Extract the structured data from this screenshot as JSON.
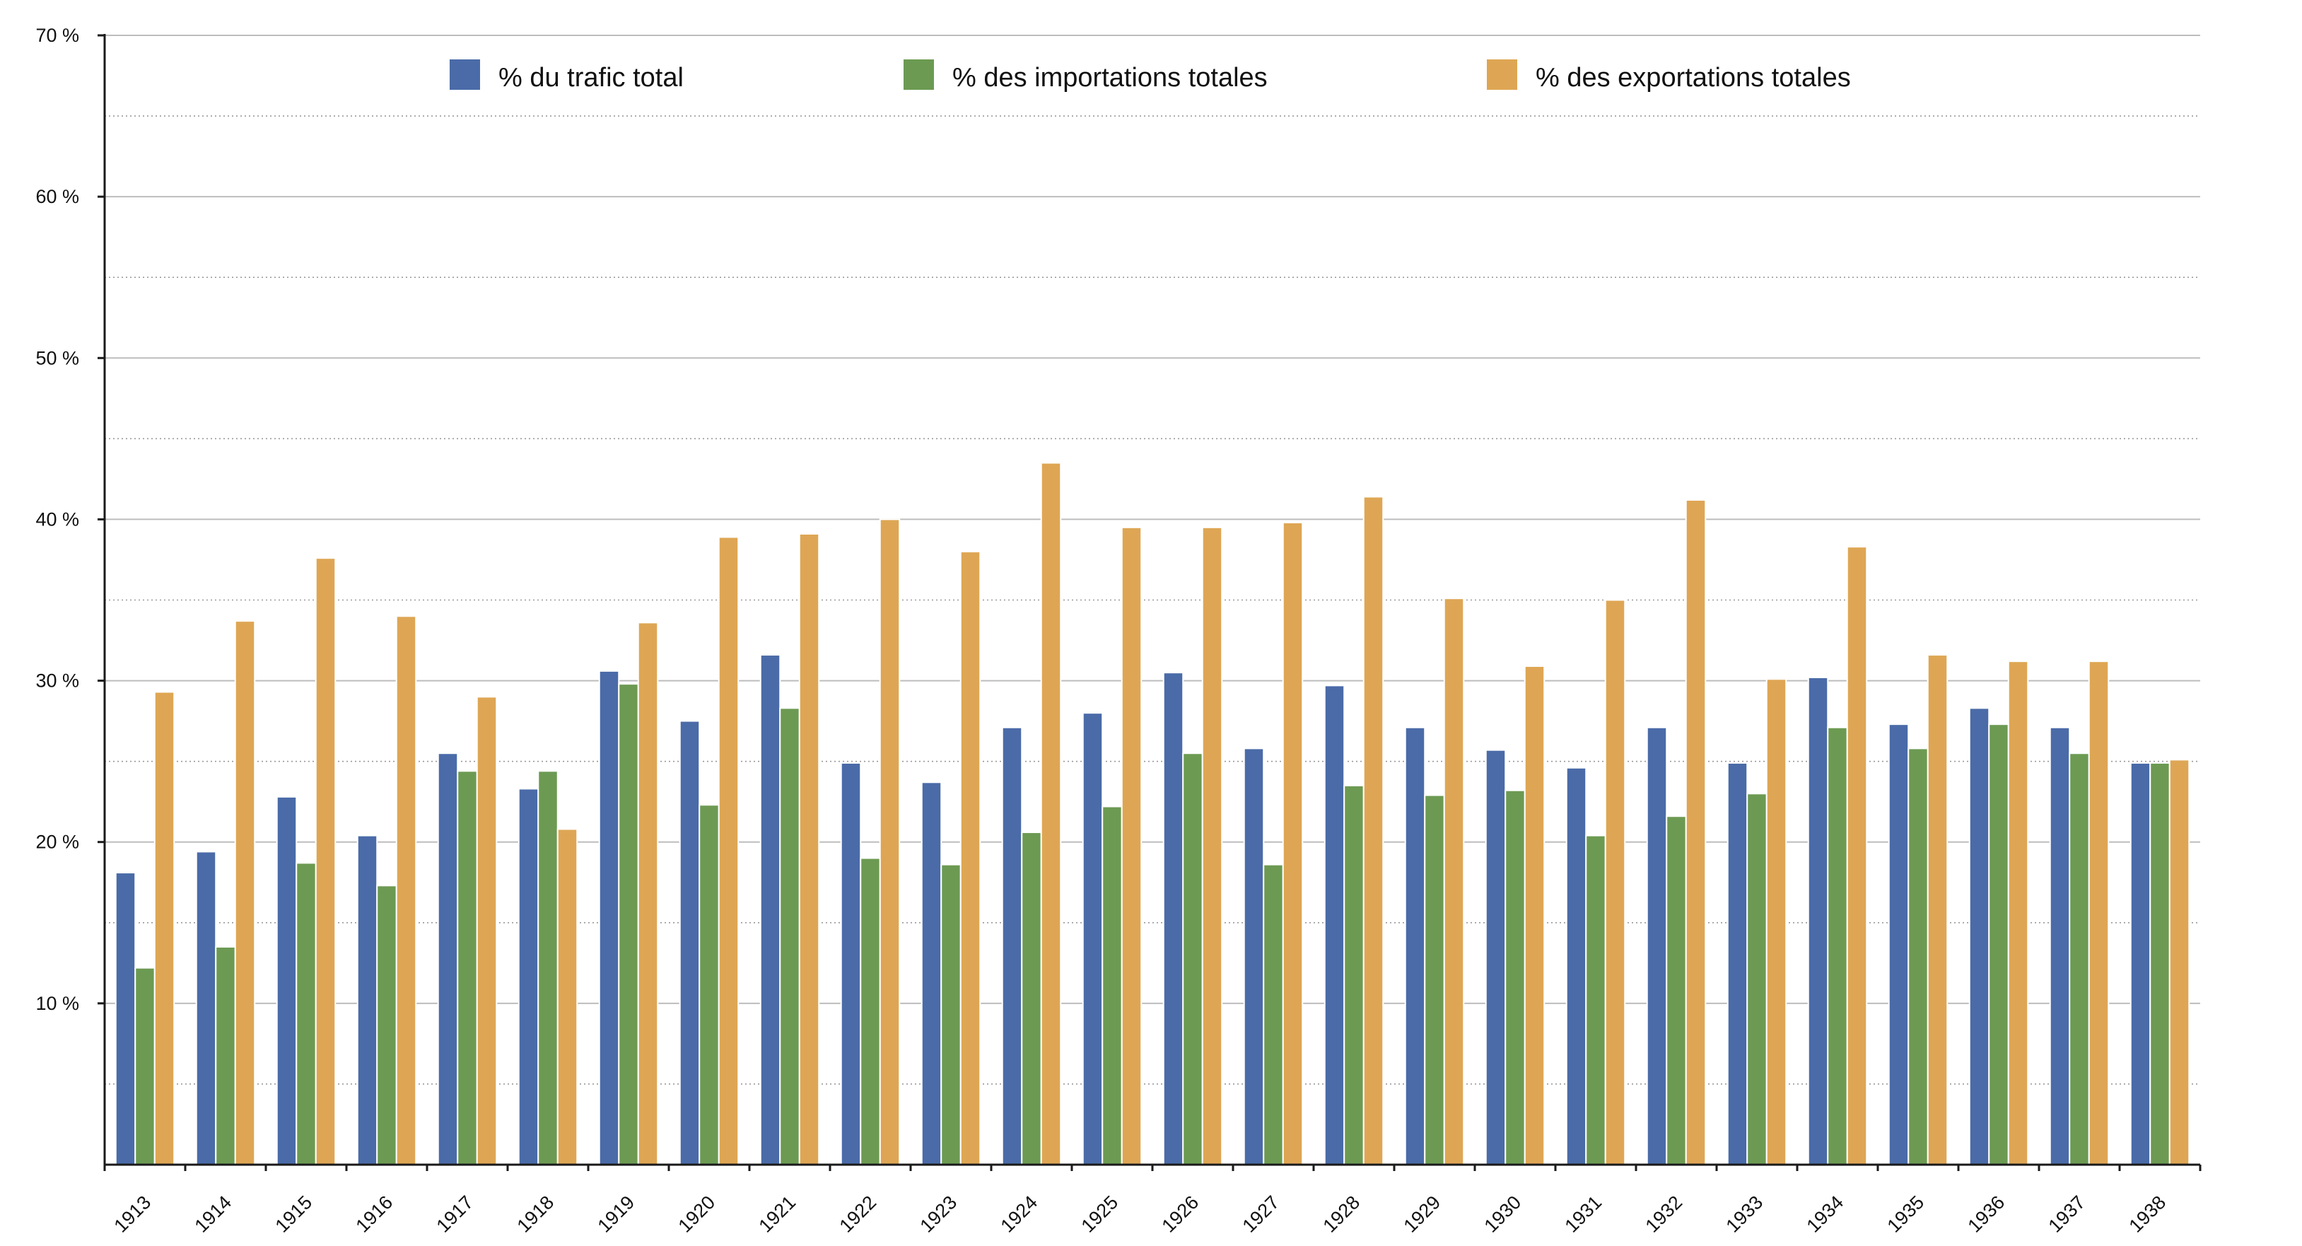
{
  "chart_data": {
    "type": "bar",
    "title": "",
    "xlabel": "",
    "ylabel": "",
    "ylim": [
      0,
      70
    ],
    "yticks": [
      {
        "value": 10,
        "label": "10 %"
      },
      {
        "value": 20,
        "label": "20 %"
      },
      {
        "value": 30,
        "label": "30 %"
      },
      {
        "value": 40,
        "label": "40 %"
      },
      {
        "value": 50,
        "label": "50 %"
      },
      {
        "value": 60,
        "label": "60 %"
      },
      {
        "value": 70,
        "label": "70 %"
      }
    ],
    "minor_grid_values": [
      5,
      15,
      25,
      35,
      45,
      55,
      65
    ],
    "grid": true,
    "legend_position": "top",
    "categories": [
      "1913",
      "1914",
      "1915",
      "1916",
      "1917",
      "1918",
      "1919",
      "1920",
      "1921",
      "1922",
      "1923",
      "1924",
      "1925",
      "1926",
      "1927",
      "1928",
      "1929",
      "1930",
      "1931",
      "1932",
      "1933",
      "1934",
      "1935",
      "1936",
      "1937",
      "1938"
    ],
    "series": [
      {
        "name": "% du trafic total",
        "color": "#4a6ba8",
        "values": [
          18.1,
          19.4,
          22.8,
          20.4,
          25.5,
          23.3,
          30.6,
          27.5,
          31.6,
          24.9,
          23.7,
          27.1,
          28.0,
          30.5,
          25.8,
          29.7,
          27.1,
          25.7,
          24.6,
          27.1,
          24.9,
          30.2,
          27.3,
          28.3,
          27.1,
          24.9
        ]
      },
      {
        "name": "% des importations totales",
        "color": "#6c9a52",
        "values": [
          12.2,
          13.5,
          18.7,
          17.3,
          24.4,
          24.4,
          29.8,
          22.3,
          28.3,
          19.0,
          18.6,
          20.6,
          22.2,
          25.5,
          18.6,
          23.5,
          22.9,
          23.2,
          20.4,
          21.6,
          23.0,
          27.1,
          25.8,
          27.3,
          25.5,
          24.9
        ]
      },
      {
        "name": "% des exportations totales",
        "color": "#dea654",
        "values": [
          29.3,
          33.7,
          37.6,
          34.0,
          29.0,
          20.8,
          33.6,
          38.9,
          39.1,
          40.0,
          38.0,
          43.5,
          39.5,
          39.5,
          39.8,
          41.4,
          35.1,
          30.9,
          35.0,
          41.2,
          30.1,
          38.3,
          31.6,
          31.2,
          31.2,
          25.1
        ]
      }
    ]
  }
}
